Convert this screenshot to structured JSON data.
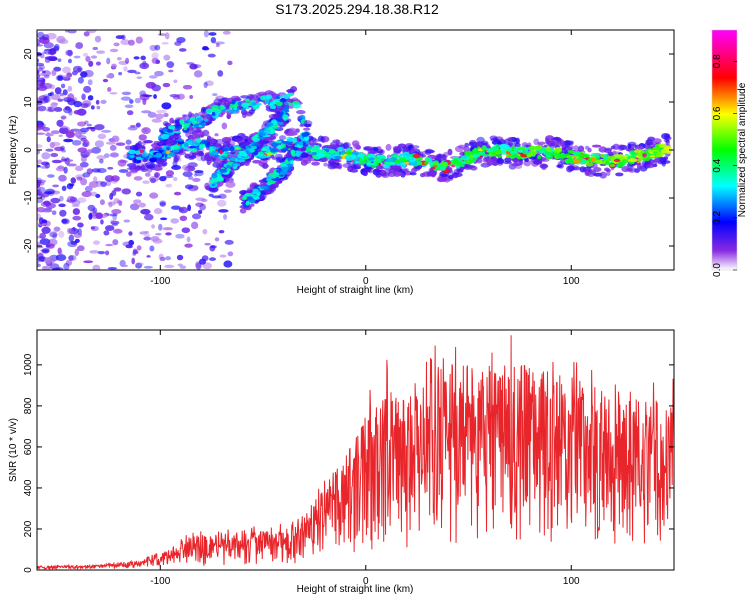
{
  "title": "S173.2025.294.18.38.R12",
  "chart_data": [
    {
      "type": "heatmap",
      "name": "spectrogram",
      "xlabel": "Height of straight line (km)",
      "ylabel": "Frequency (Hz)",
      "xlim": [
        -160,
        150
      ],
      "ylim": [
        -25,
        25
      ],
      "xticks": [
        -100,
        0,
        100
      ],
      "yticks": [
        -20,
        -10,
        0,
        10,
        20
      ],
      "colorbar": {
        "label": "Normalized spectral amplitude",
        "range": [
          0,
          0.92
        ],
        "ticks": [
          0.0,
          0.2,
          0.4,
          0.6,
          0.8
        ]
      },
      "ridges": [
        {
          "x": [
            -115,
            -100,
            -90,
            -80,
            -70,
            -60,
            -50,
            -40,
            -33,
            -30,
            -25,
            -20,
            -10,
            0,
            10,
            20,
            30,
            35,
            40,
            50,
            60,
            70,
            80,
            90,
            100,
            110,
            120,
            130,
            140,
            148
          ],
          "y": [
            -1.5,
            -1,
            1,
            1,
            -1,
            0,
            -0.5,
            1,
            1.5,
            0,
            -0.5,
            -0.5,
            -1,
            -2,
            -2.5,
            -2,
            -2.5,
            -3.5,
            -3.5,
            -1.5,
            0,
            -0.5,
            -0.5,
            -0.5,
            -1.5,
            -2,
            -2.5,
            -1.5,
            -0.5,
            0.3
          ]
        },
        {
          "x": [
            -100,
            -90,
            -80,
            -70,
            -60,
            -50,
            -40,
            -35,
            -30
          ],
          "y": [
            3,
            5,
            6,
            9,
            9,
            10,
            10,
            11,
            6
          ]
        },
        {
          "x": [
            -75,
            -65,
            -55,
            -45,
            -38
          ],
          "y": [
            -7,
            -3,
            1,
            5,
            8
          ]
        },
        {
          "x": [
            -60,
            -50,
            -40,
            -33,
            -28
          ],
          "y": [
            -11,
            -8,
            -4,
            0,
            4
          ]
        }
      ]
    },
    {
      "type": "line",
      "name": "snr",
      "xlabel": "Height of straight line (km)",
      "ylabel": "SNR (10 * v/v)",
      "xlim": [
        -160,
        150
      ],
      "ylim": [
        0,
        1170
      ],
      "xticks": [
        -100,
        0,
        100
      ],
      "yticks": [
        0,
        200,
        400,
        600,
        800,
        1000
      ],
      "color": "#e8252a",
      "envelope": {
        "x": [
          -160,
          -130,
          -110,
          -95,
          -85,
          -60,
          -40,
          -25,
          -20,
          -10,
          0,
          10,
          20,
          30,
          40,
          50,
          60,
          70,
          80,
          90,
          100,
          110,
          120,
          130,
          140,
          150
        ],
        "y": [
          20,
          25,
          50,
          110,
          170,
          180,
          200,
          330,
          420,
          560,
          760,
          900,
          880,
          960,
          1010,
          1000,
          1010,
          1010,
          1000,
          990,
          940,
          920,
          870,
          870,
          840,
          820
        ]
      }
    }
  ]
}
